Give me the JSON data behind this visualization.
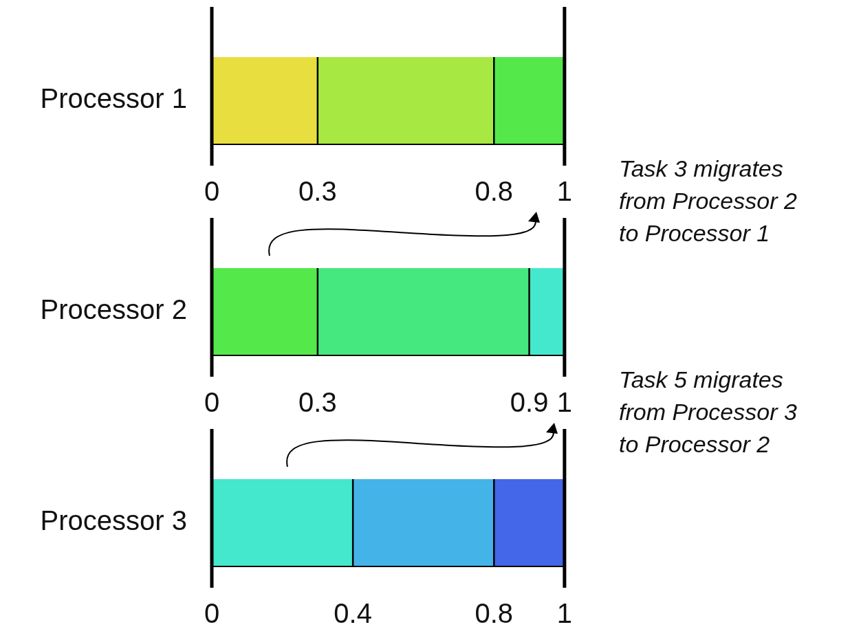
{
  "chart_data": [
    {
      "type": "bar",
      "orientation": "horizontal",
      "stacked": true,
      "categories": [
        "Processor 1"
      ],
      "xlim": [
        0,
        1
      ],
      "xticks": [
        0,
        0.3,
        0.8,
        1
      ],
      "series": [
        {
          "color": "#e8de40",
          "values": [
            0.3
          ]
        },
        {
          "color": "#a8e843",
          "values": [
            0.5
          ]
        },
        {
          "color": "#55e84a",
          "values": [
            0.2
          ]
        }
      ],
      "annotations": [
        "Task 3 migrates from Processor 2 to Processor 1"
      ]
    },
    {
      "type": "bar",
      "orientation": "horizontal",
      "stacked": true,
      "categories": [
        "Processor 2"
      ],
      "xlim": [
        0,
        1
      ],
      "xticks": [
        0,
        0.3,
        0.9,
        1
      ],
      "series": [
        {
          "color": "#55e84a",
          "values": [
            0.3
          ]
        },
        {
          "color": "#44e87e",
          "values": [
            0.6
          ]
        },
        {
          "color": "#44e8cc",
          "values": [
            0.1
          ]
        }
      ],
      "annotations": [
        "Task 5 migrates from Processor 3 to Processor 2"
      ]
    },
    {
      "type": "bar",
      "orientation": "horizontal",
      "stacked": true,
      "categories": [
        "Processor 3"
      ],
      "xlim": [
        0,
        1
      ],
      "xticks": [
        0,
        0.4,
        0.8,
        1
      ],
      "series": [
        {
          "color": "#44e8cc",
          "values": [
            0.4
          ]
        },
        {
          "color": "#44b4e8",
          "values": [
            0.4
          ]
        },
        {
          "color": "#4466e8",
          "values": [
            0.2
          ]
        }
      ]
    }
  ]
}
